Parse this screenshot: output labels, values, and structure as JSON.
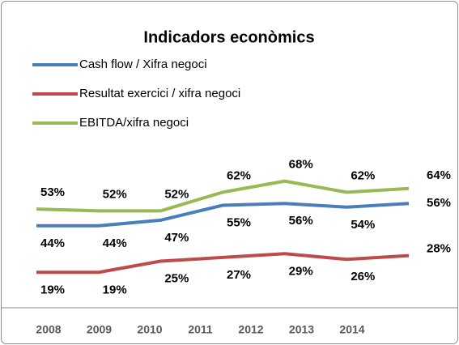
{
  "chart_data": {
    "type": "line",
    "title": "Indicadors econòmics",
    "categories": [
      "2008",
      "2009",
      "2010",
      "2011",
      "2012",
      "2013",
      "2014"
    ],
    "series": [
      {
        "name": "Cash flow / Xifra negoci",
        "color": "#4a7ebb",
        "values": [
          44,
          44,
          47,
          55,
          56,
          54,
          56
        ],
        "value_labels": [
          "44%",
          "44%",
          "47%",
          "55%",
          "56%",
          "54%",
          "56%"
        ]
      },
      {
        "name": "Resultat exercici / xifra negoci",
        "color": "#be4b48",
        "values": [
          19,
          19,
          25,
          27,
          29,
          26,
          28
        ],
        "value_labels": [
          "19%",
          "19%",
          "25%",
          "27%",
          "29%",
          "26%",
          "28%"
        ]
      },
      {
        "name": "EBITDA/xifra negoci",
        "color": "#98b954",
        "values": [
          53,
          52,
          52,
          62,
          68,
          62,
          64
        ],
        "value_labels": [
          "53%",
          "52%",
          "52%",
          "62%",
          "68%",
          "62%",
          "64%"
        ]
      }
    ]
  }
}
